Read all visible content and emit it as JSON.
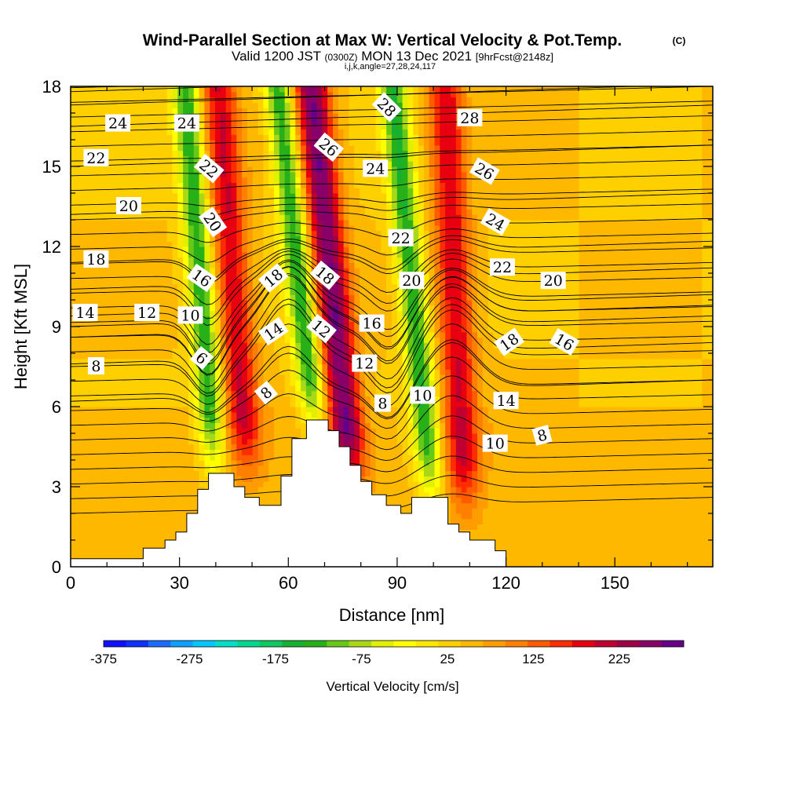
{
  "title": "Wind-Parallel Section at Max W: Vertical Velocity & Pot.Temp.",
  "title_mark": "(C)",
  "subtitle": {
    "valid": "Valid 1200 JST",
    "utc": "(0300Z)",
    "date": "MON 13 Dec 2021",
    "fcst": "[9hrFcst@2148z]"
  },
  "section_info": "i,j,k,angle=27,28,24,117",
  "chart_data": {
    "type": "heatmap",
    "xlabel": "Distance [nm]",
    "ylabel": "Height [Kft MSL]",
    "xlim": [
      0,
      177
    ],
    "ylim": [
      0,
      18
    ],
    "x_ticks": [
      0,
      30,
      60,
      90,
      120,
      150
    ],
    "y_ticks": [
      0,
      3,
      6,
      9,
      12,
      15,
      18
    ],
    "grid": false,
    "fill_variable": "Vertical Velocity [cm/s]",
    "contour_variable": "Potential temperature",
    "colorbar": {
      "label": "Vertical Velocity [cm/s]",
      "ticks": [
        -375,
        -275,
        -175,
        -75,
        25,
        125,
        225
      ],
      "range": [
        -375,
        275
      ],
      "step": 25,
      "colors": [
        "#1010ff",
        "#1030ff",
        "#1a6cff",
        "#10a0ff",
        "#00c8ff",
        "#00e0c8",
        "#00d890",
        "#10c860",
        "#18b030",
        "#28b018",
        "#68c818",
        "#a8d818",
        "#e0f000",
        "#ffff00",
        "#ffe800",
        "#ffd000",
        "#ffb800",
        "#ff9c00",
        "#ff8000",
        "#ff5c00",
        "#ff2c00",
        "#e80010",
        "#c00030",
        "#a00048",
        "#880068",
        "#660088"
      ]
    },
    "updrafts": [
      {
        "x": 49,
        "zmin": 3.0,
        "zmax": 18,
        "tilt_nm_per_kft": -0.55,
        "peak_cm_s": 150
      },
      {
        "x": 78,
        "zmin": 2.5,
        "zmax": 18,
        "tilt_nm_per_kft": -0.75,
        "peak_cm_s": 225
      },
      {
        "x": 109,
        "zmin": 1.5,
        "zmax": 18,
        "tilt_nm_per_kft": -0.35,
        "peak_cm_s": 150
      }
    ],
    "downdrafts": [
      {
        "x": 40,
        "zmin": 3.0,
        "zmax": 18,
        "tilt_nm_per_kft": -0.55,
        "peak_cm_s": -175
      },
      {
        "x": 68,
        "zmin": 4.5,
        "zmax": 18,
        "tilt_nm_per_kft": -0.8,
        "peak_cm_s": -175
      },
      {
        "x": 100,
        "zmin": 2.0,
        "zmax": 18,
        "tilt_nm_per_kft": -0.7,
        "peak_cm_s": -175
      }
    ],
    "terrain": [
      [
        0,
        0.3
      ],
      [
        20,
        0.3
      ],
      [
        20,
        0.7
      ],
      [
        26,
        0.7
      ],
      [
        26,
        1.0
      ],
      [
        29,
        1.0
      ],
      [
        29,
        1.3
      ],
      [
        32,
        1.3
      ],
      [
        32,
        2.0
      ],
      [
        35,
        2.0
      ],
      [
        35,
        2.9
      ],
      [
        38,
        2.9
      ],
      [
        38,
        3.5
      ],
      [
        45,
        3.5
      ],
      [
        45,
        3.0
      ],
      [
        48,
        3.0
      ],
      [
        48,
        2.6
      ],
      [
        52,
        2.6
      ],
      [
        52,
        2.3
      ],
      [
        58,
        2.3
      ],
      [
        58,
        3.4
      ],
      [
        61,
        3.4
      ],
      [
        61,
        4.8
      ],
      [
        65,
        4.8
      ],
      [
        65,
        5.5
      ],
      [
        71,
        5.5
      ],
      [
        71,
        5.1
      ],
      [
        74,
        5.1
      ],
      [
        74,
        4.5
      ],
      [
        77,
        4.5
      ],
      [
        77,
        3.8
      ],
      [
        80,
        3.8
      ],
      [
        80,
        3.2
      ],
      [
        83,
        3.2
      ],
      [
        83,
        2.7
      ],
      [
        87,
        2.7
      ],
      [
        87,
        2.3
      ],
      [
        91,
        2.3
      ],
      [
        91,
        2.0
      ],
      [
        94,
        2.0
      ],
      [
        94,
        2.6
      ],
      [
        104,
        2.6
      ],
      [
        104,
        1.6
      ],
      [
        107,
        1.6
      ],
      [
        107,
        1.3
      ],
      [
        110,
        1.3
      ],
      [
        110,
        1.0
      ],
      [
        117,
        1.0
      ],
      [
        117,
        0.6
      ],
      [
        120,
        0.6
      ],
      [
        120,
        0
      ],
      [
        0,
        0
      ]
    ],
    "isentropes": [
      {
        "label": "6",
        "z_left": 6.2
      },
      {
        "label": "8",
        "z_left": 7.6
      },
      {
        "label": "10",
        "z_left": 8.6
      },
      {
        "label": "12",
        "z_left": 9.0
      },
      {
        "label": "14",
        "z_left": 9.4
      },
      {
        "label": "16",
        "z_left": 10.4
      },
      {
        "label": "18",
        "z_left": 11.4
      },
      {
        "label": "20",
        "z_left": 13.2
      },
      {
        "label": "22",
        "z_left": 15.0
      },
      {
        "label": "24",
        "z_left": 16.5
      },
      {
        "label": "26",
        "z_left": 17.3
      },
      {
        "label": "28",
        "z_left": 17.8
      }
    ],
    "contour_labels": [
      {
        "text": "24",
        "x": 13,
        "z": 16.6,
        "angle": 0
      },
      {
        "text": "24",
        "x": 32,
        "z": 16.6,
        "angle": 0
      },
      {
        "text": "22",
        "x": 7,
        "z": 15.3,
        "angle": 0
      },
      {
        "text": "22",
        "x": 38,
        "z": 14.9,
        "angle": 40
      },
      {
        "text": "20",
        "x": 16,
        "z": 13.5,
        "angle": 0
      },
      {
        "text": "20",
        "x": 39,
        "z": 12.9,
        "angle": 55
      },
      {
        "text": "18",
        "x": 7,
        "z": 11.5,
        "angle": 0
      },
      {
        "text": "16",
        "x": 36,
        "z": 10.8,
        "angle": 35
      },
      {
        "text": "18",
        "x": 56,
        "z": 10.8,
        "angle": -40
      },
      {
        "text": "18",
        "x": 70,
        "z": 10.9,
        "angle": 40
      },
      {
        "text": "14",
        "x": 4,
        "z": 9.5,
        "angle": 0
      },
      {
        "text": "12",
        "x": 21,
        "z": 9.5,
        "angle": 0
      },
      {
        "text": "10",
        "x": 33,
        "z": 9.4,
        "angle": 0
      },
      {
        "text": "14",
        "x": 56,
        "z": 8.8,
        "angle": -35
      },
      {
        "text": "12",
        "x": 69,
        "z": 8.9,
        "angle": 40
      },
      {
        "text": "16",
        "x": 83,
        "z": 9.1,
        "angle": 0
      },
      {
        "text": "6",
        "x": 36,
        "z": 7.8,
        "angle": 40
      },
      {
        "text": "8",
        "x": 7,
        "z": 7.5,
        "angle": 0
      },
      {
        "text": "12",
        "x": 81,
        "z": 7.6,
        "angle": 0
      },
      {
        "text": "8",
        "x": 54,
        "z": 6.5,
        "angle": -40
      },
      {
        "text": "8",
        "x": 86,
        "z": 6.1,
        "angle": 0
      },
      {
        "text": "10",
        "x": 97,
        "z": 6.4,
        "angle": 0
      },
      {
        "text": "28",
        "x": 87,
        "z": 17.2,
        "angle": 45
      },
      {
        "text": "26",
        "x": 71,
        "z": 15.7,
        "angle": 40
      },
      {
        "text": "24",
        "x": 84,
        "z": 14.9,
        "angle": 0
      },
      {
        "text": "22",
        "x": 91,
        "z": 12.3,
        "angle": 0
      },
      {
        "text": "20",
        "x": 94,
        "z": 10.7,
        "angle": 0
      },
      {
        "text": "28",
        "x": 110,
        "z": 16.8,
        "angle": 0
      },
      {
        "text": "26",
        "x": 114,
        "z": 14.8,
        "angle": 30
      },
      {
        "text": "24",
        "x": 117,
        "z": 12.9,
        "angle": 30
      },
      {
        "text": "22",
        "x": 119,
        "z": 11.2,
        "angle": 0
      },
      {
        "text": "20",
        "x": 133,
        "z": 10.7,
        "angle": 0
      },
      {
        "text": "18",
        "x": 121,
        "z": 8.4,
        "angle": -35
      },
      {
        "text": "16",
        "x": 136,
        "z": 8.4,
        "angle": 30
      },
      {
        "text": "14",
        "x": 120,
        "z": 6.2,
        "angle": 0
      },
      {
        "text": "10",
        "x": 117,
        "z": 4.6,
        "angle": 0
      },
      {
        "text": "8",
        "x": 130,
        "z": 4.9,
        "angle": -15
      }
    ]
  }
}
